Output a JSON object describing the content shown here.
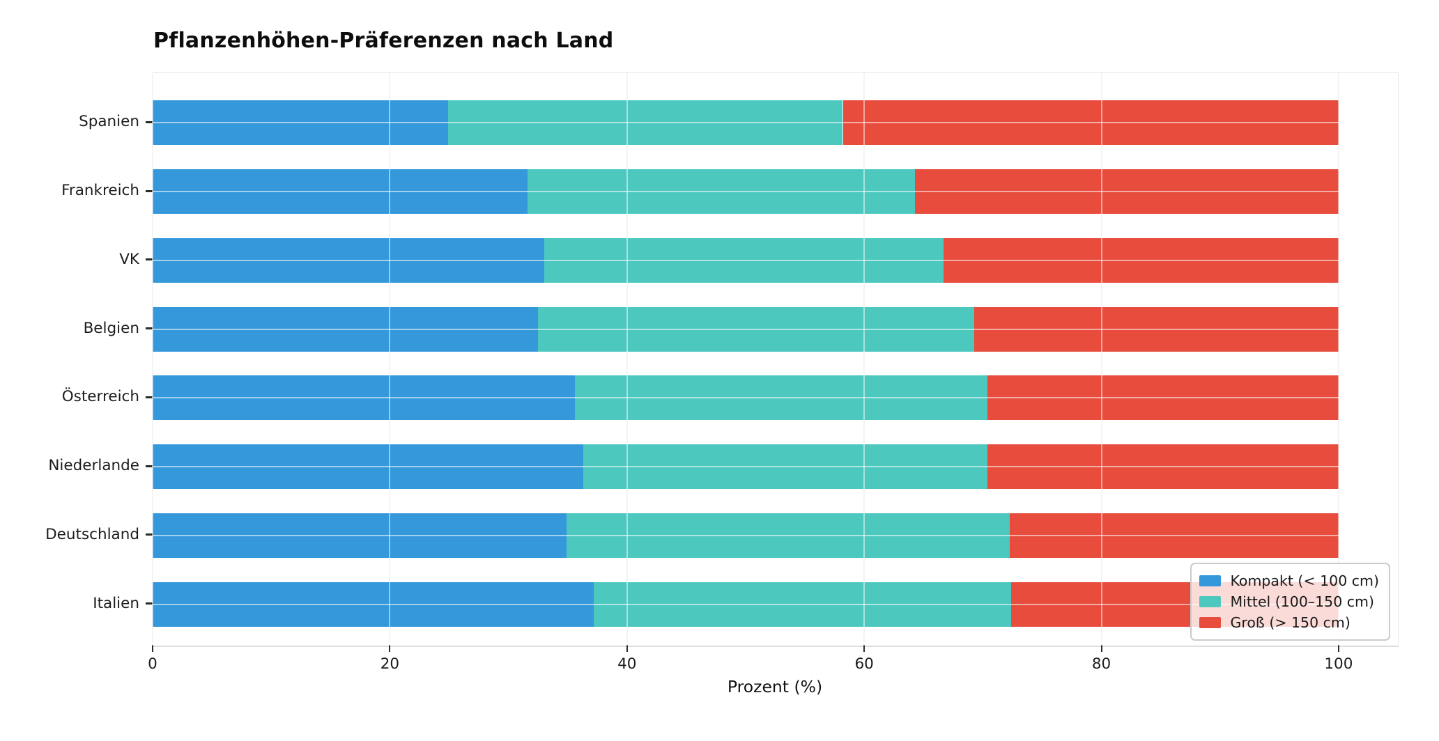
{
  "title": "Pflanzenhöhen-Präferenzen nach Land",
  "chart_data": {
    "type": "bar",
    "orientation": "horizontal",
    "stacked": true,
    "title": "Pflanzenhöhen-Präferenzen nach Land",
    "categories": [
      "Spanien",
      "Frankreich",
      "VK",
      "Belgien",
      "Österreich",
      "Niederlande",
      "Deutschland",
      "Italien"
    ],
    "series": [
      {
        "name": "Kompakt (< 100 cm)",
        "color": "#3498db",
        "values": [
          24.9,
          31.6,
          33.0,
          32.5,
          35.6,
          36.3,
          34.9,
          37.2
        ]
      },
      {
        "name": "Mittel (100–150 cm)",
        "color": "#4cc8bf",
        "values": [
          33.3,
          32.7,
          33.7,
          36.8,
          34.8,
          34.1,
          37.4,
          35.2
        ]
      },
      {
        "name": "Groß (> 150 cm)",
        "color": "#e74c3c",
        "values": [
          41.8,
          35.7,
          33.3,
          30.7,
          29.6,
          29.6,
          27.7,
          27.6
        ]
      }
    ],
    "xlabel": "Prozent (%)",
    "ylabel": "",
    "x_ticks": [
      0,
      20,
      40,
      60,
      80,
      100
    ],
    "xlim": [
      0,
      105
    ],
    "grid": true,
    "gridline_color": "#e9e9e9",
    "legend_position": "lower right"
  }
}
